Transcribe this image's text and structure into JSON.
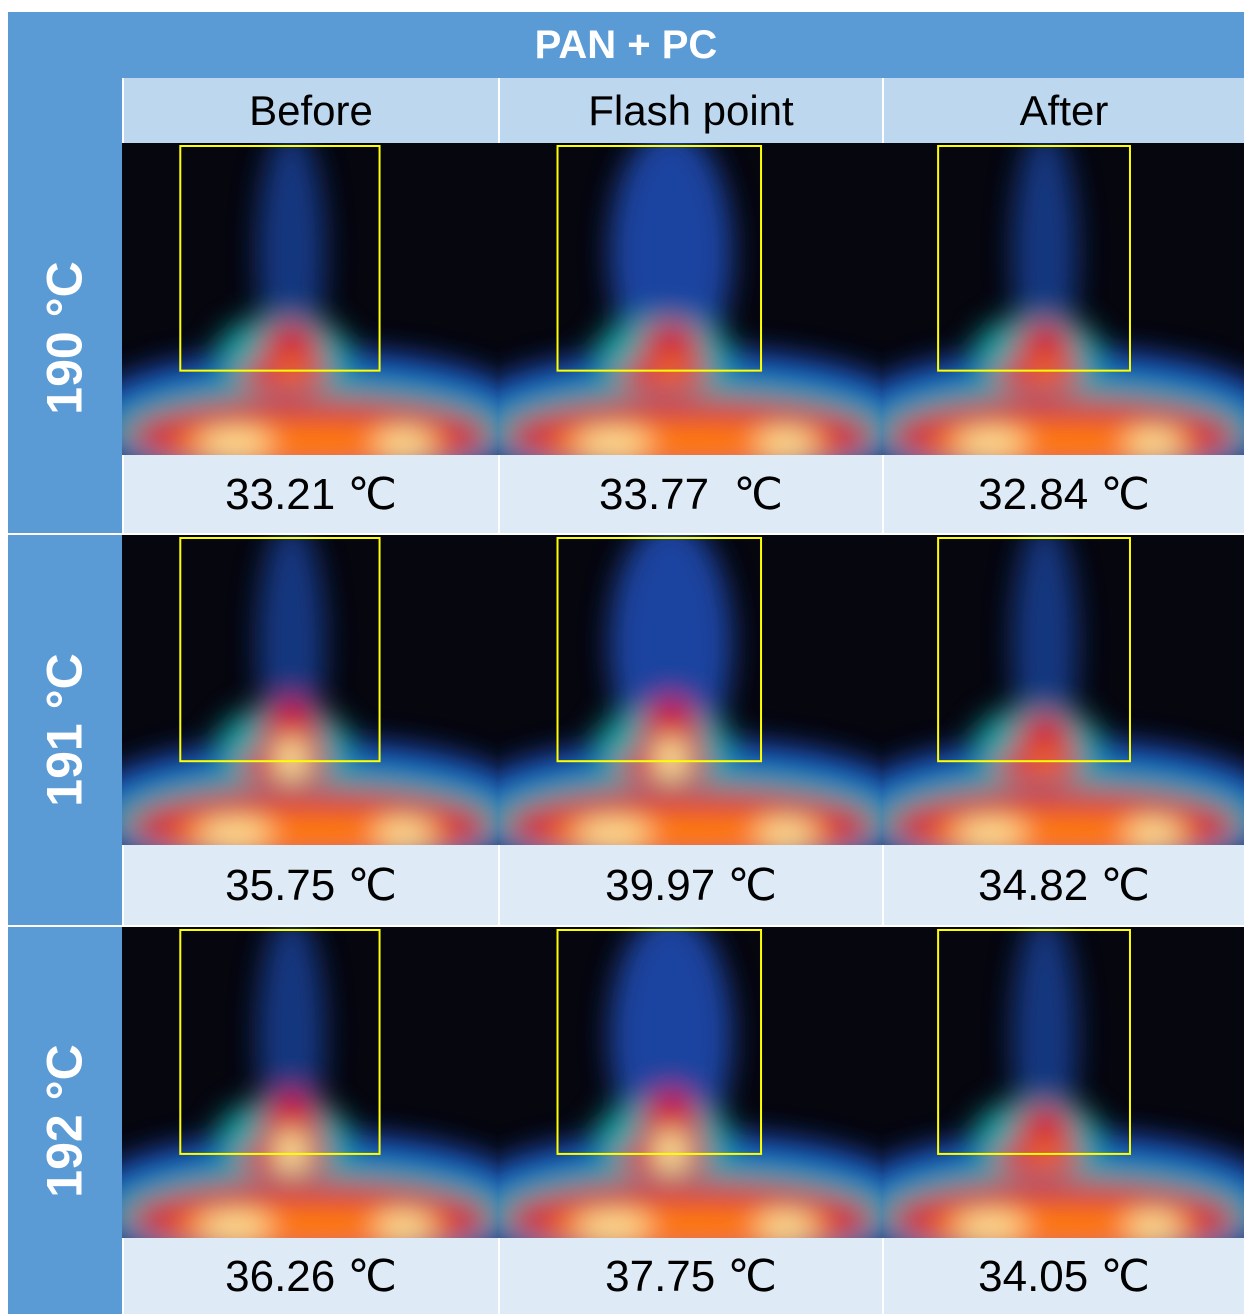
{
  "title": "PAN + PC",
  "columns": [
    "Before",
    "Flash point",
    "After"
  ],
  "rows": [
    {
      "label": "190 °C",
      "temperatures": [
        "33.21 ℃",
        "33.77  ℃",
        "32.84 ℃"
      ]
    },
    {
      "label": "191 °C",
      "temperatures": [
        "35.75 ℃",
        "39.97 ℃",
        "34.82 ℃"
      ]
    },
    {
      "label": "192 °C",
      "temperatures": [
        "36.26 ℃",
        "37.75 ℃",
        "34.05 ℃"
      ]
    }
  ]
}
